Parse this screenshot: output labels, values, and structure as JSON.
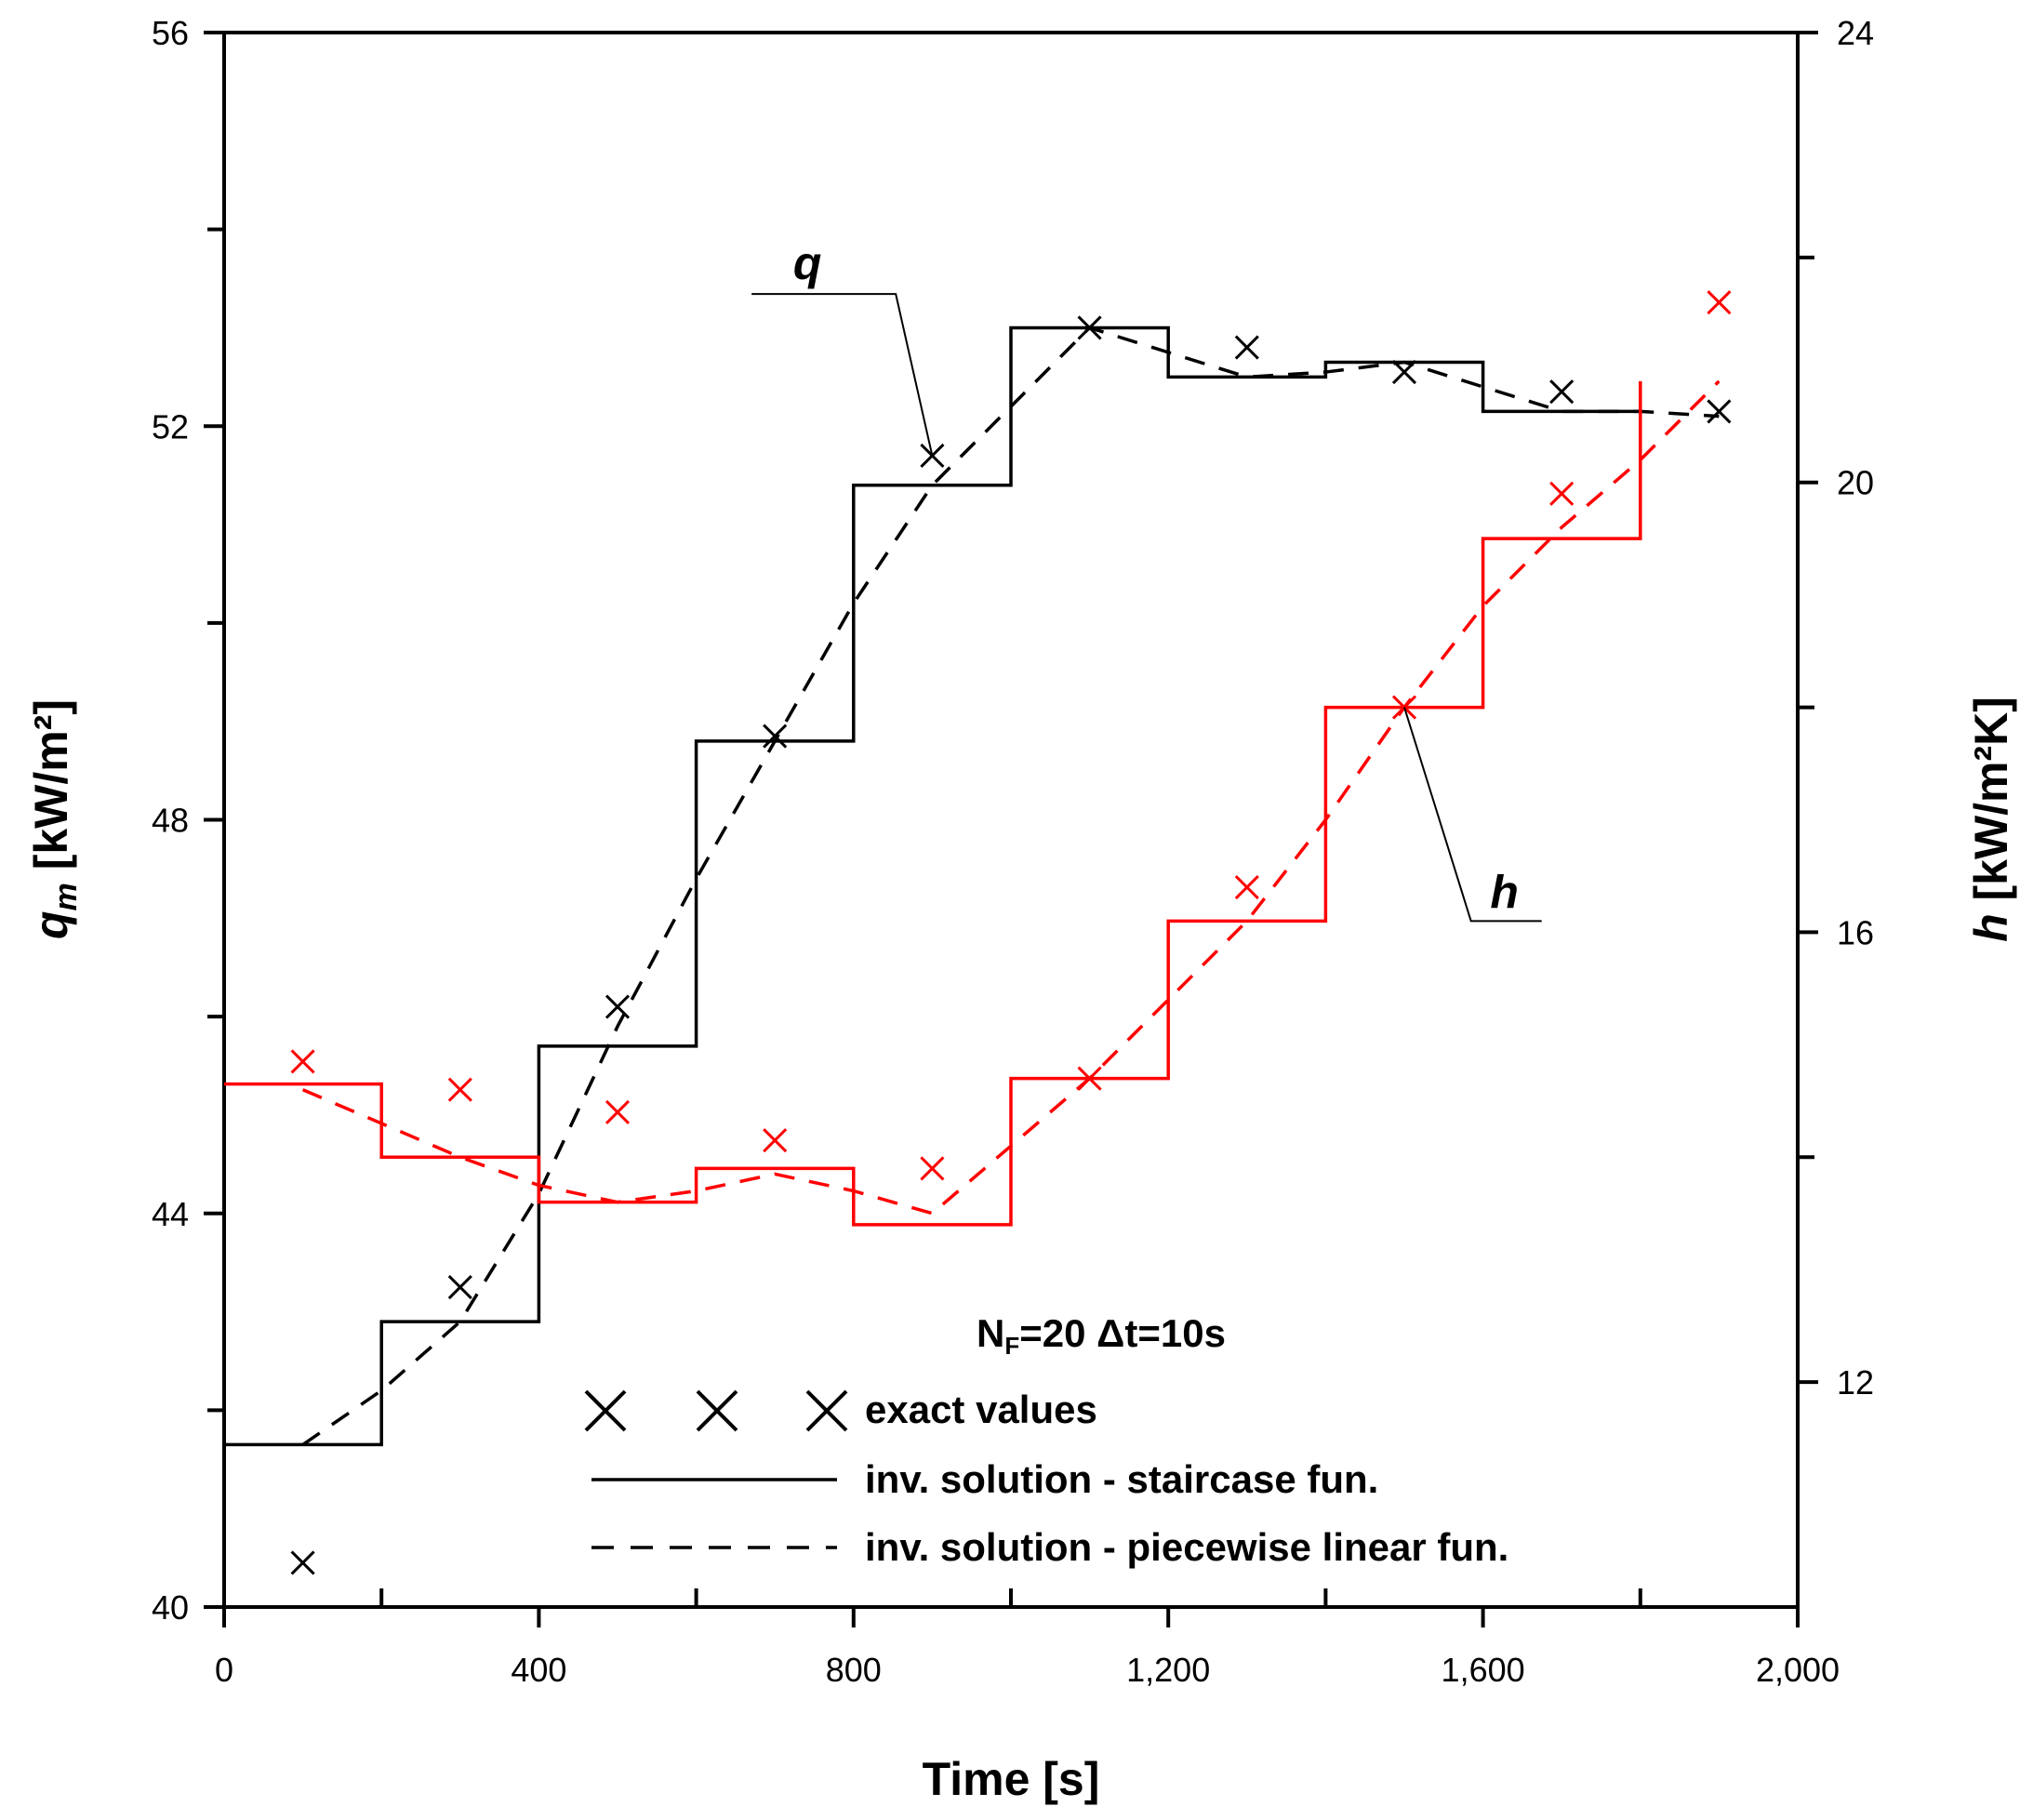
{
  "chart_data": {
    "type": "line",
    "x_axis": {
      "label": "Time [s]",
      "range": [
        0,
        2000
      ],
      "ticks": [
        0,
        400,
        800,
        1200,
        1600,
        2000
      ],
      "tick_labels": [
        "0",
        "400",
        "800",
        "1,200",
        "1,600",
        "2,000"
      ],
      "minor_ticks": [
        200,
        600,
        1000,
        1400,
        1800
      ]
    },
    "y_left": {
      "label_main": "q",
      "label_sub": "m",
      "label_unit": " [kW/m²]",
      "range": [
        40,
        56
      ],
      "ticks": [
        40,
        44,
        48,
        52,
        56
      ],
      "tick_labels": [
        "40",
        "44",
        "48",
        "52",
        "56"
      ],
      "minor_ticks": [
        42,
        46,
        50,
        54
      ]
    },
    "y_right": {
      "label_main": "h",
      "label_unit": " [kW/m²K]",
      "range": [
        10,
        24
      ],
      "ticks": [
        12,
        16,
        20,
        24
      ],
      "tick_labels": [
        "12",
        "16",
        "20",
        "24"
      ],
      "minor_ticks": [
        14,
        18,
        22
      ]
    },
    "series": [
      {
        "name": "q staircase",
        "axis": "left",
        "color": "#000000",
        "style": "solid",
        "kind": "step",
        "breaks": [
          0,
          200,
          400,
          600,
          800,
          1000,
          1200,
          1400,
          1600,
          1800
        ],
        "values": [
          41.65,
          42.9,
          45.7,
          48.8,
          51.4,
          53.0,
          52.5,
          52.65,
          52.15,
          52.15
        ],
        "end": 1800
      },
      {
        "name": "q piecewise linear",
        "axis": "left",
        "color": "#000000",
        "style": "dashed",
        "kind": "line",
        "x": [
          100,
          200,
          300,
          400,
          500,
          600,
          700,
          800,
          900,
          1000,
          1100,
          1200,
          1300,
          1400,
          1500,
          1600,
          1700,
          1800,
          1900
        ],
        "y": [
          41.65,
          42.2,
          42.9,
          44.2,
          45.9,
          47.4,
          48.8,
          50.2,
          51.4,
          52.2,
          53.0,
          52.75,
          52.5,
          52.55,
          52.65,
          52.4,
          52.15,
          52.15,
          52.1
        ]
      },
      {
        "name": "q exact values",
        "axis": "left",
        "color": "#000000",
        "kind": "markers",
        "x": [
          100,
          300,
          500,
          700,
          900,
          1100,
          1300,
          1500,
          1700,
          1900
        ],
        "y": [
          40.45,
          43.25,
          46.1,
          48.85,
          51.7,
          53.0,
          52.8,
          52.55,
          52.35,
          52.15
        ]
      },
      {
        "name": "h staircase",
        "axis": "right",
        "color": "#ff0000",
        "style": "solid",
        "kind": "step",
        "breaks": [
          0,
          200,
          400,
          600,
          800,
          1000,
          1200,
          1400,
          1600,
          1800
        ],
        "values": [
          14.65,
          14.0,
          13.6,
          13.9,
          13.4,
          14.7,
          16.1,
          18.0,
          19.5,
          19.5
        ],
        "end": 1800,
        "final_rise_to": 20.9
      },
      {
        "name": "h piecewise linear",
        "axis": "right",
        "color": "#ff0000",
        "style": "dashed",
        "kind": "line",
        "x": [
          100,
          200,
          300,
          400,
          500,
          600,
          700,
          800,
          900,
          1000,
          1100,
          1200,
          1300,
          1400,
          1500,
          1600,
          1700,
          1800,
          1900
        ],
        "y": [
          14.6,
          14.3,
          14.0,
          13.75,
          13.6,
          13.7,
          13.85,
          13.7,
          13.5,
          14.1,
          14.7,
          15.4,
          16.1,
          17.0,
          18.0,
          18.9,
          19.6,
          20.2,
          20.9
        ]
      },
      {
        "name": "h exact values",
        "axis": "right",
        "color": "#ff0000",
        "kind": "markers",
        "x": [
          100,
          300,
          500,
          700,
          900,
          1100,
          1300,
          1500,
          1700,
          1900
        ],
        "y": [
          14.85,
          14.6,
          14.4,
          14.15,
          13.9,
          14.7,
          16.4,
          18.0,
          19.9,
          21.6
        ]
      }
    ],
    "annotations": [
      {
        "text": "q",
        "style": "bold-italic",
        "x_data": 765,
        "y_left": 53.4,
        "leader_to": [
          900,
          51.7
        ]
      },
      {
        "text": "h",
        "style": "bold-italic",
        "x_data": 1580,
        "y_right": 16.1,
        "leader_to": [
          1500,
          18.0
        ]
      }
    ],
    "legend": {
      "placement": "bottom-right",
      "title_main": "N",
      "title_sub": "F",
      "title_rest": "=20 Δt=10s",
      "entries": [
        {
          "label": "exact values",
          "marker": "x",
          "count": 3
        },
        {
          "label": "inv. solution - staircase fun.",
          "line": "solid"
        },
        {
          "label": "inv. solution - piecewise linear fun.",
          "line": "dashed"
        }
      ]
    }
  }
}
